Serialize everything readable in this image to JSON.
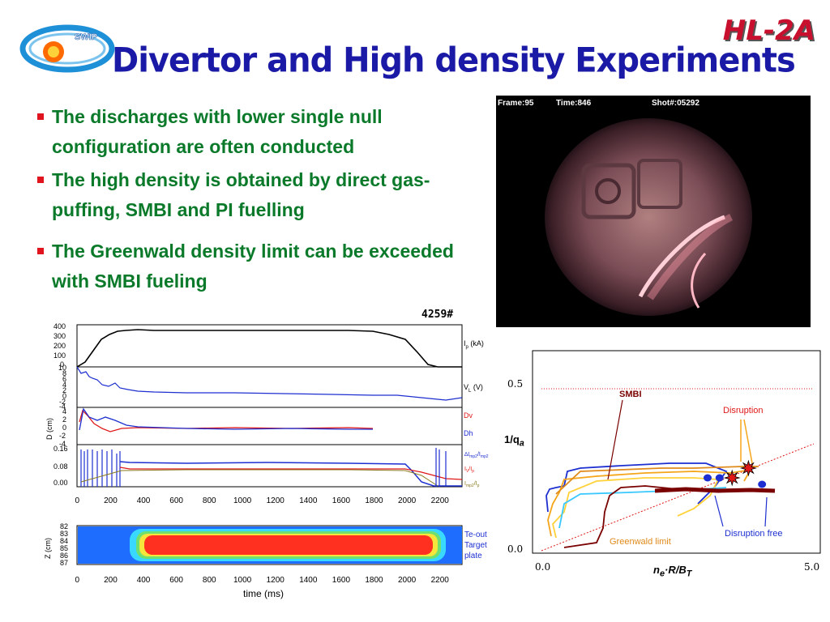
{
  "header": {
    "title": "Divertor and High density Experiments",
    "logo_text": "SWIP",
    "brand": "HL-2A"
  },
  "bullets": [
    "The discharges with lower single null configuration are often conducted",
    "The high density is obtained by direct gas-puffing, SMBI and PI fuelling",
    "The Greenwald density limit can be exceeded with SMBI fueling"
  ],
  "camera": {
    "frame": "Frame:95",
    "time": "Time:846",
    "shot": "Shot#:05292"
  },
  "waveforms": {
    "shot_label": "4259#",
    "x_ticks": [
      "0",
      "200",
      "400",
      "600",
      "800",
      "1000",
      "1200",
      "1400",
      "1600",
      "1800",
      "2000",
      "2200"
    ],
    "x_label": "time (ms)",
    "panel1": {
      "ticks": [
        "400",
        "300",
        "200",
        "100",
        "0"
      ],
      "label": "I",
      "label_sub": "p",
      "label_unit": " (kA)"
    },
    "panel2": {
      "ticks": [
        "10",
        "8",
        "6",
        "4",
        "2",
        "0",
        "-2",
        "-4"
      ],
      "label": "V",
      "label_sub": "L",
      "label_unit": " (V)"
    },
    "panel3": {
      "ticks": [
        "4",
        "2",
        "0",
        "-2",
        "-4"
      ],
      "ylabel": "D (cm)",
      "legend": [
        "Dv",
        "Dh"
      ]
    },
    "panel4": {
      "ticks": [
        "0.16",
        "0.08",
        "0.00"
      ]
    },
    "panel5": {
      "ticks": [
        "82",
        "83",
        "84",
        "85",
        "86",
        "87"
      ],
      "ylabel": "Z (cm)",
      "legend": [
        "Te-out",
        "Target",
        "plate"
      ]
    }
  },
  "colors": {
    "title": "#1a1aa6",
    "bullet_text": "#0a7a2a",
    "bullet_marker": "#e0141e",
    "brand": "#c8102e",
    "blue": "#1d2fd0",
    "red": "#e01818"
  },
  "chart_data": {
    "type": "scatter",
    "ylabel": "1/q",
    "ylabel_sub": "a",
    "xlabel_main": "n",
    "xlabel_sub": "e",
    "xlabel_rest": "·R/B",
    "xlabel_sub2": "T",
    "x_ticks": [
      "0.0",
      "5.0"
    ],
    "y_ticks": [
      "0.0",
      "0.5"
    ],
    "xlim": [
      0,
      5
    ],
    "ylim": [
      0,
      0.6
    ],
    "annotations": [
      "SMBI",
      "Disruption",
      "Disruption free",
      "Greenwald limit"
    ],
    "greenwald_line": {
      "x": [
        0,
        5
      ],
      "y": [
        0,
        0.33
      ]
    },
    "disruption_points": [
      {
        "x": 3.8,
        "y": 0.255
      },
      {
        "x": 3.5,
        "y": 0.225
      }
    ],
    "disruption_free_points": [
      {
        "x": 3.05,
        "y": 0.225
      },
      {
        "x": 3.27,
        "y": 0.225
      },
      {
        "x": 4.05,
        "y": 0.205
      }
    ]
  }
}
